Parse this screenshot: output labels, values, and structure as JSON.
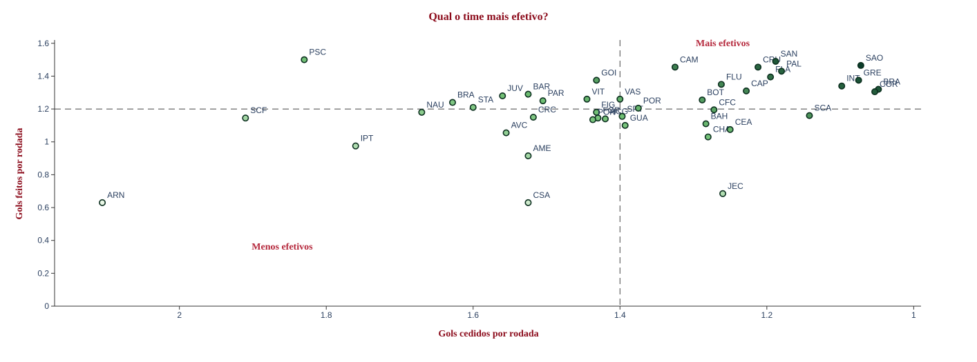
{
  "chart_data": {
    "type": "scatter",
    "title": "Qual o time mais efetivo?",
    "xlabel": "Gols cedidos por rodada",
    "ylabel": "Gols feitos por rodada",
    "x_reversed": true,
    "xlim": [
      2.17,
      0.99
    ],
    "ylim": [
      0,
      1.62
    ],
    "xticks": [
      2,
      1.8,
      1.6,
      1.4,
      1.2,
      1
    ],
    "xtick_labels": [
      "2",
      "1.8",
      "1.6",
      "1.4",
      "1.2",
      "1"
    ],
    "yticks": [
      0,
      0.2,
      0.4,
      0.6,
      0.8,
      1,
      1.2,
      1.4,
      1.6
    ],
    "ytick_labels": [
      "0",
      "0.2",
      "0.4",
      "0.6",
      "0.8",
      "1",
      "1.2",
      "1.4",
      "1.6"
    ],
    "ref_x": 1.4,
    "ref_y": 1.2,
    "grid": false,
    "annotations": [
      {
        "text": "Mais efetivos",
        "x": 1.26,
        "y": 1.6
      },
      {
        "text": "Menos efetivos",
        "x": 1.86,
        "y": 0.36
      }
    ],
    "colors": {
      "low": "#e9f7e6",
      "mid": "#6fbf73",
      "high": "#0b3d2a",
      "marker_outline": "#0b2e1e",
      "ref_line": "#444444",
      "axis": "#333333"
    },
    "points": [
      {
        "label": "ARN",
        "x": 2.105,
        "y": 0.63
      },
      {
        "label": "SCF",
        "x": 1.91,
        "y": 1.145
      },
      {
        "label": "PSC",
        "x": 1.83,
        "y": 1.5
      },
      {
        "label": "IPT",
        "x": 1.76,
        "y": 0.975
      },
      {
        "label": "NAU",
        "x": 1.67,
        "y": 1.18
      },
      {
        "label": "BRA",
        "x": 1.628,
        "y": 1.24
      },
      {
        "label": "STA",
        "x": 1.6,
        "y": 1.21
      },
      {
        "label": "JUV",
        "x": 1.56,
        "y": 1.28
      },
      {
        "label": "AVC",
        "x": 1.555,
        "y": 1.055
      },
      {
        "label": "BAR",
        "x": 1.525,
        "y": 1.29
      },
      {
        "label": "AME",
        "x": 1.525,
        "y": 0.915
      },
      {
        "label": "CSA",
        "x": 1.525,
        "y": 0.63
      },
      {
        "label": "CRC",
        "x": 1.518,
        "y": 1.15
      },
      {
        "label": "PAR",
        "x": 1.505,
        "y": 1.25
      },
      {
        "label": "VIT",
        "x": 1.445,
        "y": 1.26
      },
      {
        "label": "GOI",
        "x": 1.432,
        "y": 1.375
      },
      {
        "label": "FIG",
        "x": 1.432,
        "y": 1.18
      },
      {
        "label": "FOR",
        "x": 1.43,
        "y": 1.145
      },
      {
        "label": "PON",
        "x": 1.437,
        "y": 1.135
      },
      {
        "label": "ACG",
        "x": 1.42,
        "y": 1.14
      },
      {
        "label": "VAS",
        "x": 1.4,
        "y": 1.26
      },
      {
        "label": "SPT",
        "x": 1.397,
        "y": 1.155
      },
      {
        "label": "GUA",
        "x": 1.393,
        "y": 1.1
      },
      {
        "label": "POR",
        "x": 1.375,
        "y": 1.205
      },
      {
        "label": "CAM",
        "x": 1.325,
        "y": 1.455
      },
      {
        "label": "BOT",
        "x": 1.288,
        "y": 1.255
      },
      {
        "label": "BAH",
        "x": 1.283,
        "y": 1.11
      },
      {
        "label": "CHA",
        "x": 1.28,
        "y": 1.03
      },
      {
        "label": "CFC",
        "x": 1.272,
        "y": 1.195
      },
      {
        "label": "FLU",
        "x": 1.262,
        "y": 1.35
      },
      {
        "label": "CEA",
        "x": 1.25,
        "y": 1.075
      },
      {
        "label": "JEC",
        "x": 1.26,
        "y": 0.685
      },
      {
        "label": "CAP",
        "x": 1.228,
        "y": 1.31
      },
      {
        "label": "CRU",
        "x": 1.212,
        "y": 1.455
      },
      {
        "label": "FLA",
        "x": 1.195,
        "y": 1.395
      },
      {
        "label": "SAN",
        "x": 1.188,
        "y": 1.49
      },
      {
        "label": "PAL",
        "x": 1.18,
        "y": 1.43
      },
      {
        "label": "SCA",
        "x": 1.142,
        "y": 1.16
      },
      {
        "label": "INT",
        "x": 1.098,
        "y": 1.34
      },
      {
        "label": "SAO",
        "x": 1.072,
        "y": 1.465
      },
      {
        "label": "GRE",
        "x": 1.075,
        "y": 1.375
      },
      {
        "label": "BRA",
        "x": 1.048,
        "y": 1.32
      },
      {
        "label": "COR",
        "x": 1.053,
        "y": 1.305
      }
    ]
  }
}
